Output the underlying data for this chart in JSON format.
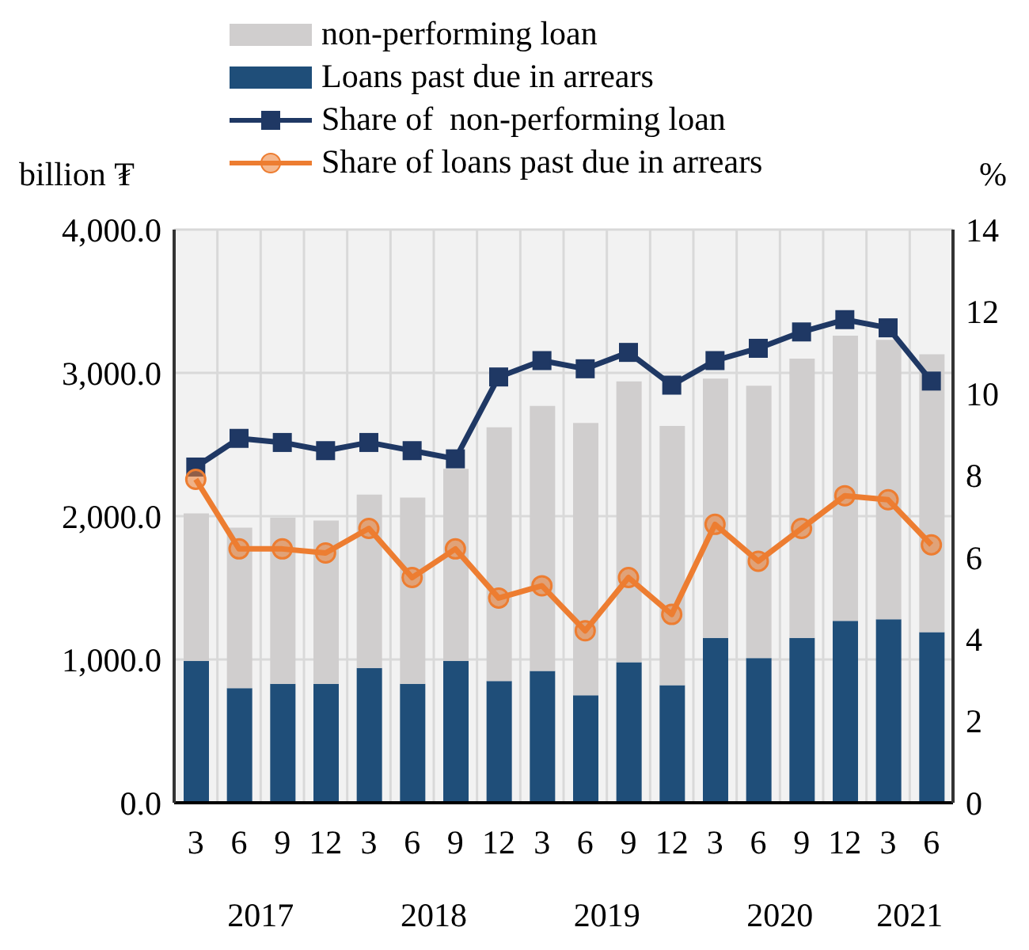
{
  "chart_data": {
    "type": "bar",
    "stacked": true,
    "ylabel": "billion ₮",
    "y2label": "%",
    "categories": [
      "3",
      "6",
      "9",
      "12",
      "3",
      "6",
      "9",
      "12",
      "3",
      "6",
      "9",
      "12",
      "3",
      "6",
      "9",
      "12",
      "3",
      "6"
    ],
    "annotations": [
      "2017",
      "2018",
      "2019",
      "2020",
      "2021"
    ],
    "series": [
      {
        "name": "Loans past due in arrears",
        "color": "#1f4e79",
        "values": [
          990,
          800,
          830,
          830,
          940,
          830,
          990,
          850,
          920,
          750,
          980,
          820,
          1150,
          1010,
          1150,
          1270,
          1280,
          1190
        ]
      },
      {
        "name": "non-performing loan",
        "color": "#d0cece",
        "values": [
          1030,
          1120,
          1160,
          1140,
          1210,
          1300,
          1340,
          1770,
          1850,
          1900,
          1960,
          1810,
          1810,
          1900,
          1950,
          1990,
          1950,
          1940
        ]
      },
      {
        "name": "Share of  non-performing loan",
        "type": "line",
        "axis": "y2",
        "marker": "square",
        "color": "#1f3864",
        "values": [
          8.2,
          8.9,
          8.8,
          8.6,
          8.8,
          8.6,
          8.4,
          10.4,
          10.8,
          10.6,
          11.0,
          10.2,
          10.8,
          11.1,
          11.5,
          11.8,
          11.6,
          10.3
        ]
      },
      {
        "name": "Share of loans past due in arrears",
        "type": "line",
        "axis": "y2",
        "marker": "circle",
        "color": "#ed7d31",
        "values": [
          7.9,
          6.2,
          6.2,
          6.1,
          6.7,
          5.5,
          6.2,
          5.0,
          5.3,
          4.2,
          5.5,
          4.6,
          6.8,
          5.9,
          6.7,
          7.5,
          7.4,
          6.3
        ]
      }
    ],
    "ylim": [
      0,
      4000
    ],
    "yticks": [
      {
        "value": 0,
        "label": "0.0"
      },
      {
        "value": 1000,
        "label": "1,000.0"
      },
      {
        "value": 2000,
        "label": "2,000.0"
      },
      {
        "value": 3000,
        "label": "3,000.0"
      },
      {
        "value": 4000,
        "label": "4,000.0"
      }
    ],
    "y2lim": [
      0,
      14
    ],
    "y2ticks": [
      0,
      2,
      4,
      6,
      8,
      10,
      12,
      14
    ],
    "grid": true,
    "legend": "top"
  }
}
